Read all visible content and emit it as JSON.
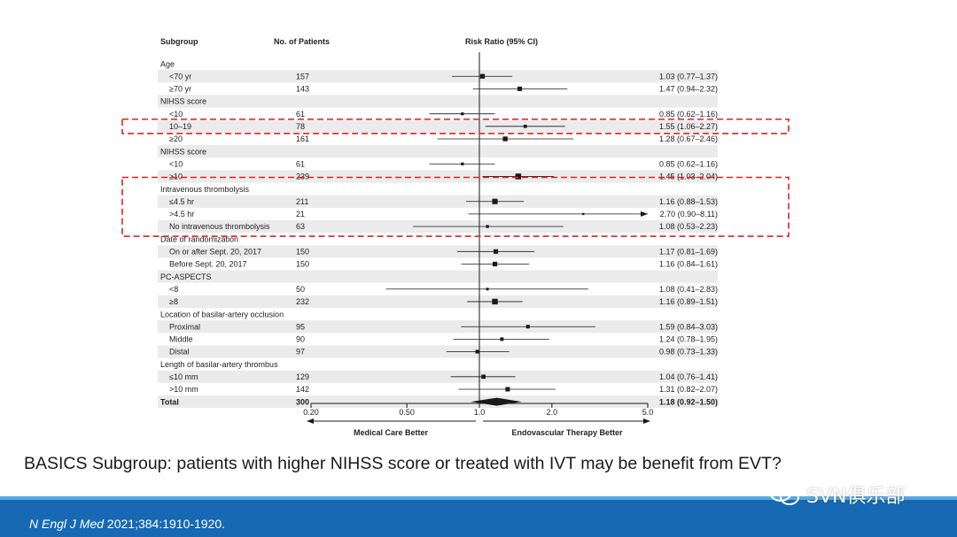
{
  "chart_data": {
    "type": "forest",
    "headers": {
      "subgroup": "Subgroup",
      "patients": "No. of Patients",
      "ratio": "Risk Ratio (95% CI)"
    },
    "x_scale": "log",
    "xlim": [
      0.2,
      5.0
    ],
    "ticks": [
      {
        "value": 0.2,
        "label": "0.20"
      },
      {
        "value": 0.5,
        "label": "0.50"
      },
      {
        "value": 1.0,
        "label": "1.0"
      },
      {
        "value": 2.0,
        "label": "2.0"
      },
      {
        "value": 5.0,
        "label": "5.0"
      }
    ],
    "left_label": "Medical Care Better",
    "right_label": "Endovascular Therapy Better",
    "rows": [
      {
        "kind": "group",
        "label": "Age"
      },
      {
        "kind": "item",
        "label": "<70 yr",
        "n": "157",
        "est": 1.03,
        "lo": 0.77,
        "hi": 1.37,
        "ci_text": "1.03 (0.77–1.37)"
      },
      {
        "kind": "item",
        "label": "≥70 yr",
        "n": "143",
        "est": 1.47,
        "lo": 0.94,
        "hi": 2.32,
        "ci_text": "1.47 (0.94–2.32)"
      },
      {
        "kind": "group",
        "label": "NIHSS score"
      },
      {
        "kind": "item",
        "label": "<10",
        "n": "61",
        "est": 0.85,
        "lo": 0.62,
        "hi": 1.16,
        "ci_text": "0.85 (0.62–1.16)"
      },
      {
        "kind": "item",
        "label": "10–19",
        "n": "78",
        "est": 1.55,
        "lo": 1.06,
        "hi": 2.27,
        "ci_text": "1.55 (1.06–2.27)",
        "highlight": true
      },
      {
        "kind": "item",
        "label": "≥20",
        "n": "161",
        "est": 1.28,
        "lo": 0.67,
        "hi": 2.46,
        "ci_text": "1.28 (0.67–2.46)"
      },
      {
        "kind": "group",
        "label": "NIHSS score"
      },
      {
        "kind": "item",
        "label": "<10",
        "n": "61",
        "est": 0.85,
        "lo": 0.62,
        "hi": 1.16,
        "ci_text": "0.85 (0.62–1.16)"
      },
      {
        "kind": "item",
        "label": "≥10",
        "n": "239",
        "est": 1.45,
        "lo": 1.03,
        "hi": 2.04,
        "ci_text": "1.45 (1.03–2.04)"
      },
      {
        "kind": "group",
        "label": "Intravenous thrombolysis",
        "highlight_start": true
      },
      {
        "kind": "item",
        "label": "≤4.5 hr",
        "n": "211",
        "est": 1.16,
        "lo": 0.88,
        "hi": 1.53,
        "ci_text": "1.16 (0.88–1.53)"
      },
      {
        "kind": "item",
        "label": ">4.5 hr",
        "n": "21",
        "est": 2.7,
        "lo": 0.9,
        "hi": 8.11,
        "ci_text": "2.70 (0.90–8.11)"
      },
      {
        "kind": "item",
        "label": "No intravenous thrombolysis",
        "n": "63",
        "est": 1.08,
        "lo": 0.53,
        "hi": 2.23,
        "ci_text": "1.08 (0.53–2.23)",
        "highlight_end": true
      },
      {
        "kind": "group",
        "label": "Date of randomization"
      },
      {
        "kind": "item",
        "label": "On or after Sept. 20, 2017",
        "n": "150",
        "est": 1.17,
        "lo": 0.81,
        "hi": 1.69,
        "ci_text": "1.17 (0.81–1.69)"
      },
      {
        "kind": "item",
        "label": "Before Sept. 20, 2017",
        "n": "150",
        "est": 1.16,
        "lo": 0.84,
        "hi": 1.61,
        "ci_text": "1.16 (0.84–1.61)"
      },
      {
        "kind": "group",
        "label": "PC-ASPECTS"
      },
      {
        "kind": "item",
        "label": "<8",
        "n": "50",
        "est": 1.08,
        "lo": 0.41,
        "hi": 2.83,
        "ci_text": "1.08 (0.41–2.83)"
      },
      {
        "kind": "item",
        "label": "≥8",
        "n": "232",
        "est": 1.16,
        "lo": 0.89,
        "hi": 1.51,
        "ci_text": "1.16 (0.89–1.51)"
      },
      {
        "kind": "group",
        "label": "Location of basilar-artery occlusion"
      },
      {
        "kind": "item",
        "label": "Proximal",
        "n": "95",
        "est": 1.59,
        "lo": 0.84,
        "hi": 3.03,
        "ci_text": "1.59 (0.84–3.03)"
      },
      {
        "kind": "item",
        "label": "Middle",
        "n": "90",
        "est": 1.24,
        "lo": 0.78,
        "hi": 1.95,
        "ci_text": "1.24 (0.78–1.95)"
      },
      {
        "kind": "item",
        "label": "Distal",
        "n": "97",
        "est": 0.98,
        "lo": 0.73,
        "hi": 1.33,
        "ci_text": "0.98 (0.73–1.33)"
      },
      {
        "kind": "group",
        "label": "Length of basilar-artery thrombus"
      },
      {
        "kind": "item",
        "label": "≤10 mm",
        "n": "129",
        "est": 1.04,
        "lo": 0.76,
        "hi": 1.41,
        "ci_text": "1.04 (0.76–1.41)"
      },
      {
        "kind": "item",
        "label": ">10 mm",
        "n": "142",
        "est": 1.31,
        "lo": 0.82,
        "hi": 2.07,
        "ci_text": "1.31 (0.82–2.07)"
      },
      {
        "kind": "total",
        "label": "Total",
        "n": "300",
        "est": 1.18,
        "lo": 0.92,
        "hi": 1.5,
        "ci_text": "1.18 (0.92–1.50)"
      }
    ],
    "colors": {
      "text": "#222222",
      "shade": "#ebebeb",
      "marker": "#1a1a1a",
      "highlight": "#e02020"
    }
  },
  "caption": "BASICS Subgroup: patients with higher NIHSS score or treated with IVT may be benefit from EVT?",
  "footer": {
    "journal": "N Engl J Med",
    "reference": " 2021;384:1910-1920.",
    "watermark": "SVN俱乐部",
    "bar_color": "#1769b3"
  }
}
